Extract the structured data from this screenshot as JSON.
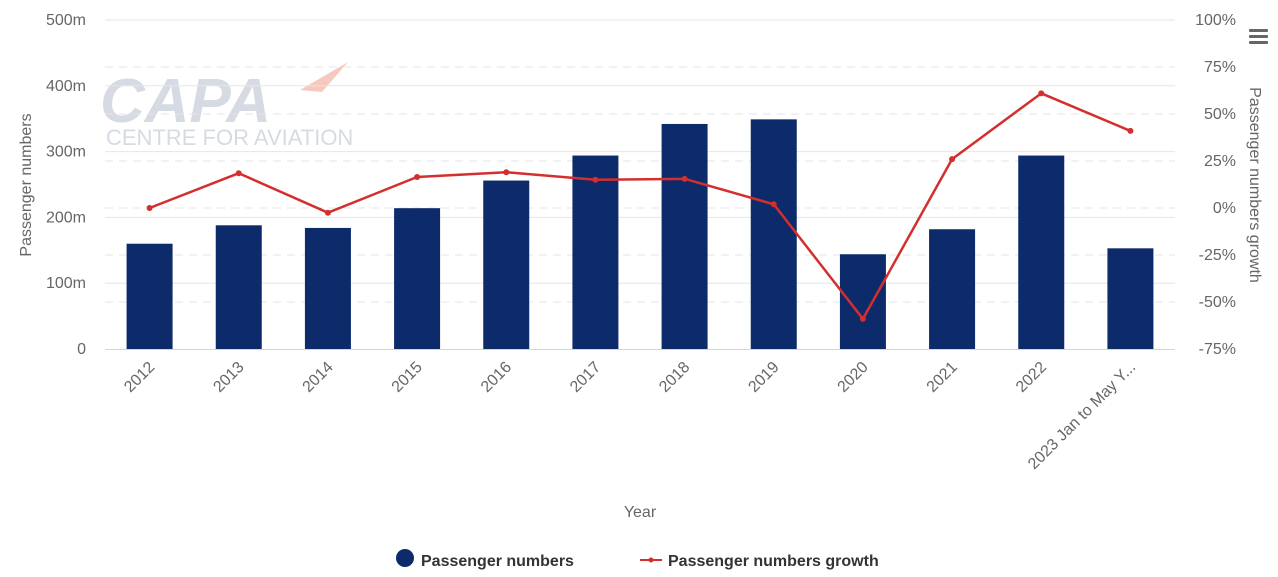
{
  "logo": {
    "main": "CAPA",
    "sub": "CENTRE FOR AVIATION"
  },
  "menu": {
    "icon": "hamburger-menu-icon"
  },
  "chart_data": {
    "type": "bar+line",
    "categories": [
      "2012",
      "2013",
      "2014",
      "2015",
      "2016",
      "2017",
      "2018",
      "2019",
      "2020",
      "2021",
      "2022",
      "2023 Jan to May Y..."
    ],
    "series": [
      {
        "name": "Passenger numbers",
        "type": "bar",
        "axis": "left",
        "color": "#0d2a6b",
        "values": [
          160,
          188,
          184,
          214,
          256,
          294,
          342,
          349,
          144,
          182,
          294,
          153
        ]
      },
      {
        "name": "Passenger numbers growth",
        "type": "line",
        "axis": "right",
        "color": "#d32f2f",
        "values": [
          0,
          18.5,
          -2.5,
          16.5,
          19,
          15,
          15.5,
          2,
          -59,
          26,
          61,
          41
        ]
      }
    ],
    "left_axis": {
      "title": "Passenger numbers",
      "ylim": [
        0,
        500
      ],
      "ticks": [
        {
          "v": 0,
          "label": "0"
        },
        {
          "v": 100,
          "label": "100m"
        },
        {
          "v": 200,
          "label": "200m"
        },
        {
          "v": 300,
          "label": "300m"
        },
        {
          "v": 400,
          "label": "400m"
        },
        {
          "v": 500,
          "label": "500m"
        }
      ]
    },
    "right_axis": {
      "title": "Passenger numbers growth",
      "ylim": [
        -75,
        100
      ],
      "ticks": [
        {
          "v": -75,
          "label": "-75%"
        },
        {
          "v": -50,
          "label": "-50%"
        },
        {
          "v": -25,
          "label": "-25%"
        },
        {
          "v": 0,
          "label": "0%"
        },
        {
          "v": 25,
          "label": "25%"
        },
        {
          "v": 50,
          "label": "50%"
        },
        {
          "v": 75,
          "label": "75%"
        },
        {
          "v": 100,
          "label": "100%"
        }
      ]
    },
    "xlabel": "Year",
    "legend": {
      "placement": "bottom-center"
    },
    "grid": true
  }
}
